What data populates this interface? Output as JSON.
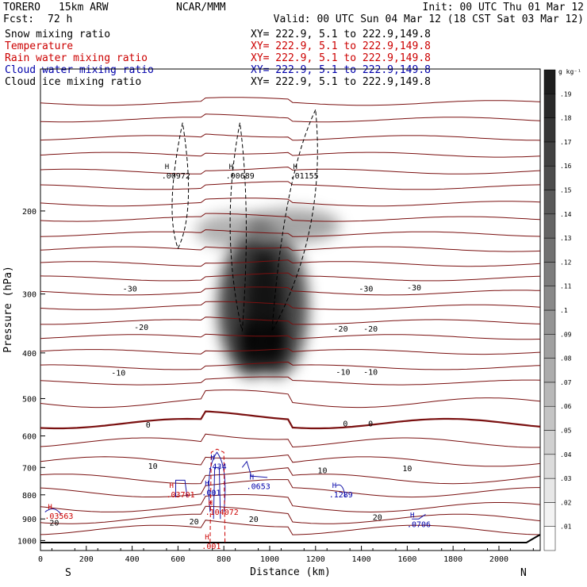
{
  "header": {
    "model": "TORERO",
    "grid": "15km ARW",
    "center": "NCAR/MMM",
    "init": "Init: 00 UTC Thu 01 Mar 12",
    "fcst_label": "Fcst:",
    "fcst_value": "72 h",
    "valid": "Valid: 00 UTC Sun 04 Mar 12 (18 CST Sat 03 Mar 12)"
  },
  "legend": {
    "items": [
      {
        "label": "Snow mixing ratio",
        "color": "#000000",
        "xy": "XY= 222.9,  5.1 to 222.9,149.8"
      },
      {
        "label": "Temperature",
        "color": "#cc0000",
        "xy": "XY= 222.9,  5.1 to 222.9,149.8"
      },
      {
        "label": "Rain water mixing ratio",
        "color": "#cc0000",
        "xy": "XY= 222.9,  5.1 to 222.9,149.8"
      },
      {
        "label": "Cloud water mixing ratio",
        "color": "#0000aa",
        "xy": "XY= 222.9,  5.1 to 222.9,149.8"
      },
      {
        "label": "Cloud ice mixing ratio",
        "color": "#000000",
        "xy": "XY= 222.9,  5.1 to 222.9,149.8"
      }
    ]
  },
  "colorbar": {
    "unit": "g kg⁻¹",
    "levels": [
      ".01",
      ".02",
      ".03",
      ".04",
      ".05",
      ".06",
      ".07",
      ".08",
      ".09",
      ".1",
      ".11",
      ".12",
      ".13",
      ".14",
      ".15",
      ".16",
      ".17",
      ".18",
      ".19"
    ]
  },
  "chart_data": {
    "type": "contour",
    "xlabel": "Distance (km)",
    "ylabel": "Pressure (hPa)",
    "xlim": [
      0,
      2180
    ],
    "ylim": [
      1050,
      100
    ],
    "x_ticks": [
      0,
      200,
      400,
      600,
      800,
      1000,
      1200,
      1400,
      1600,
      1800,
      2000
    ],
    "y_ticks": [
      200,
      300,
      400,
      500,
      600,
      700,
      800,
      900,
      1000
    ],
    "y_scale": "log",
    "x_end_labels": {
      "left": "S",
      "right": "N"
    },
    "temperature_labels": [
      {
        "text": "-30",
        "x": 390,
        "p": 292
      },
      {
        "text": "-30",
        "x": 1420,
        "p": 292
      },
      {
        "text": "-30",
        "x": 1630,
        "p": 290
      },
      {
        "text": "-20",
        "x": 440,
        "p": 352
      },
      {
        "text": "-20",
        "x": 1310,
        "p": 355
      },
      {
        "text": "-20",
        "x": 1440,
        "p": 355
      },
      {
        "text": "-10",
        "x": 340,
        "p": 440
      },
      {
        "text": "-10",
        "x": 1320,
        "p": 438
      },
      {
        "text": "-10",
        "x": 1440,
        "p": 438
      },
      {
        "text": "0",
        "x": 470,
        "p": 567
      },
      {
        "text": "0",
        "x": 1330,
        "p": 564
      },
      {
        "text": "0",
        "x": 1440,
        "p": 564
      },
      {
        "text": "10",
        "x": 490,
        "p": 694
      },
      {
        "text": "10",
        "x": 1230,
        "p": 708
      },
      {
        "text": "10",
        "x": 1600,
        "p": 702
      },
      {
        "text": "20",
        "x": 60,
        "p": 915
      },
      {
        "text": "20",
        "x": 670,
        "p": 910
      },
      {
        "text": "20",
        "x": 930,
        "p": 900
      },
      {
        "text": "20",
        "x": 1470,
        "p": 890
      }
    ],
    "maxima_labels": [
      {
        "text": ".00972",
        "x": 570,
        "p": 168,
        "color": "#000000"
      },
      {
        "text": ".00689",
        "x": 850,
        "p": 168,
        "color": "#000000"
      },
      {
        "text": ".01155",
        "x": 1130,
        "p": 168,
        "color": "#000000"
      },
      {
        "text": ".434",
        "x": 770,
        "p": 695,
        "color": "#0000aa"
      },
      {
        "text": ".0653",
        "x": 940,
        "p": 765,
        "color": "#0000aa"
      },
      {
        "text": ".001",
        "x": 745,
        "p": 790,
        "color": "#0000aa"
      },
      {
        "text": ".1289",
        "x": 1300,
        "p": 797,
        "color": "#0000aa"
      },
      {
        "text": ".0706",
        "x": 1640,
        "p": 923,
        "color": "#0000aa"
      },
      {
        "text": ".03701",
        "x": 590,
        "p": 797,
        "color": "#cc0000"
      },
      {
        "text": ".104072",
        "x": 760,
        "p": 868,
        "color": "#cc0000"
      },
      {
        "text": ".03563",
        "x": 60,
        "p": 885,
        "color": "#cc0000"
      },
      {
        "text": ".001",
        "x": 745,
        "p": 1025,
        "color": "#cc0000"
      }
    ]
  }
}
